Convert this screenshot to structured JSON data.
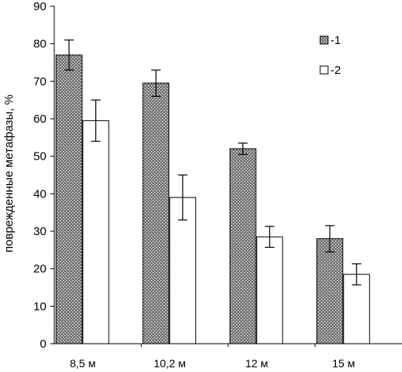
{
  "chart_data": {
    "type": "bar",
    "title": "",
    "xlabel": "",
    "ylabel": "поврежденные метафазы, %",
    "ylim": [
      0,
      90
    ],
    "yticks": [
      0,
      10,
      20,
      30,
      40,
      50,
      60,
      70,
      80,
      90
    ],
    "categories": [
      "8,5 м",
      "10,2 м",
      "12 м",
      "15 м"
    ],
    "series": [
      {
        "name": "-1",
        "values": [
          77,
          69.5,
          52,
          28
        ],
        "errors": [
          4,
          3.5,
          1.5,
          3.5
        ],
        "fill": "hatched-dark"
      },
      {
        "name": "-2",
        "values": [
          59.5,
          39,
          28.5,
          18.5
        ],
        "errors": [
          5.5,
          6,
          2.8,
          2.8
        ],
        "fill": "white"
      }
    ],
    "legend_position": "top-right",
    "grid": false,
    "colors": {
      "axis": "#000000",
      "series1_base": "#6e6e6e",
      "series1_dots": "#ffffff",
      "series2": "#ffffff"
    }
  }
}
